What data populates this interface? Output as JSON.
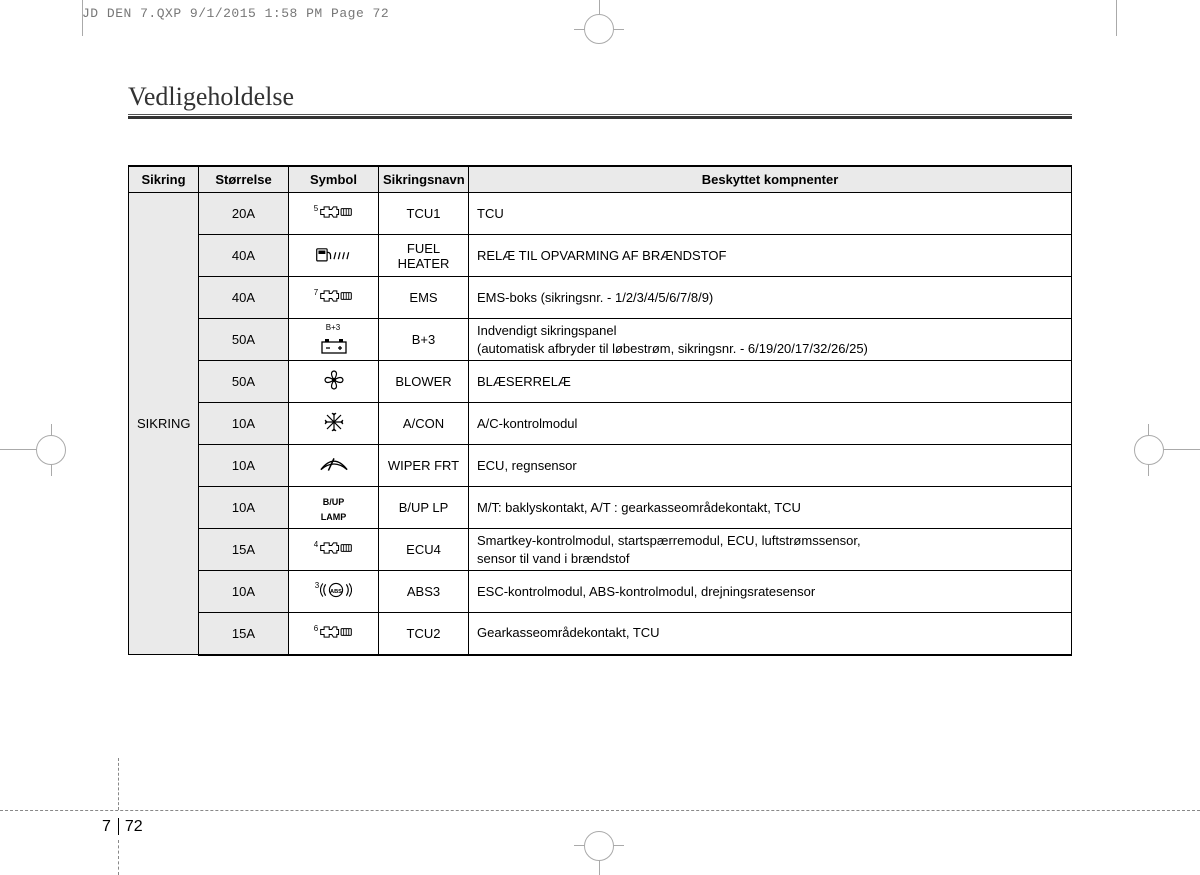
{
  "print_header": "JD DEN 7.QXP  9/1/2015  1:58 PM  Page 72",
  "section_title": "Vedligeholdelse",
  "page_chapter": "7",
  "page_number": "72",
  "columns": {
    "c1": "Sikring",
    "c2": "Størrelse",
    "c3": "Symbol",
    "c4": "Sikringsnavn",
    "c5": "Beskyttet kompnenter"
  },
  "group_label": "SIKRING",
  "rows": [
    {
      "size": "20A",
      "sym": "engine",
      "sup": "5",
      "name": "TCU1",
      "desc": "TCU"
    },
    {
      "size": "40A",
      "sym": "fuel",
      "sup": "",
      "name": "FUEL HEATER",
      "desc": "RELÆ TIL OPVARMING AF BRÆNDSTOF"
    },
    {
      "size": "40A",
      "sym": "engine",
      "sup": "7",
      "name": "EMS",
      "desc": "EMS-boks (sikringsnr. - 1/2/3/4/5/6/7/8/9)"
    },
    {
      "size": "50A",
      "sym": "battery",
      "sup": "B+3",
      "name": "B+3",
      "desc": "Indvendigt sikringspanel\n(automatisk afbryder til løbestrøm, sikringsnr. - 6/19/20/17/32/26/25)"
    },
    {
      "size": "50A",
      "sym": "fan",
      "sup": "",
      "name": "BLOWER",
      "desc": "BLÆSERRELÆ"
    },
    {
      "size": "10A",
      "sym": "snow",
      "sup": "",
      "name": "A/CON",
      "desc": "A/C-kontrolmodul"
    },
    {
      "size": "10A",
      "sym": "wiper",
      "sup": "",
      "name": "WIPER FRT",
      "desc": "ECU, regnsensor"
    },
    {
      "size": "10A",
      "sym": "text",
      "txt": "B/UP LAMP",
      "name": "B/UP LP",
      "desc": "M/T: baklyskontakt, A/T : gearkasseområdekontakt, TCU"
    },
    {
      "size": "15A",
      "sym": "engine",
      "sup": "4",
      "name": "ECU4",
      "desc": "Smartkey-kontrolmodul, startspærremodul, ECU, luftstrømssensor,\nsensor til vand i brændstof"
    },
    {
      "size": "10A",
      "sym": "abs",
      "sup": "3",
      "name": "ABS3",
      "desc": "ESC-kontrolmodul, ABS-kontrolmodul, drejningsratesensor"
    },
    {
      "size": "15A",
      "sym": "engine",
      "sup": "6",
      "name": "TCU2",
      "desc": "Gearkasseområdekontakt, TCU"
    }
  ]
}
